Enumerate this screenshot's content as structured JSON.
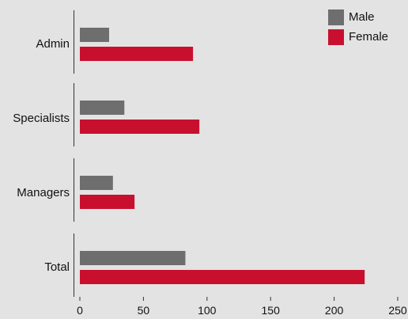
{
  "chart_data": {
    "type": "bar",
    "orientation": "horizontal",
    "title": "",
    "xlabel": "",
    "ylabel": "",
    "categories": [
      "Admin",
      "Specialists",
      "Managers",
      "Total"
    ],
    "series": [
      {
        "name": "Male",
        "color": "#6e6e6e",
        "values": [
          23,
          35,
          26,
          83
        ]
      },
      {
        "name": "Female",
        "color": "#c8102e",
        "values": [
          89,
          94,
          43,
          224
        ]
      }
    ],
    "xlim": [
      0,
      250
    ],
    "xticks": [
      0,
      50,
      100,
      150,
      200,
      250
    ],
    "grid": false,
    "legend": "top-right"
  }
}
